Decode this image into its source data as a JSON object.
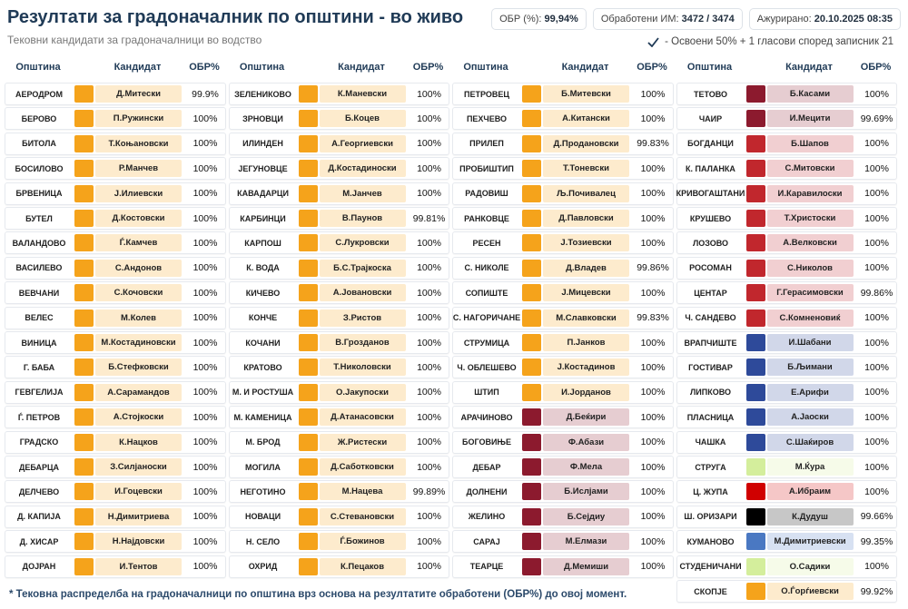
{
  "header": {
    "title": "Резултати за градоначалник по општини - во живо",
    "subtitle": "Тековни кандидати за градоначалници во водство",
    "badges": [
      {
        "label": "ОБР (%):",
        "value": "99,94%"
      },
      {
        "label": "Обработени ИМ:",
        "value": "3472 / 3474"
      },
      {
        "label": "Ажурирано:",
        "value": "20.10.2025 08:35"
      }
    ],
    "note": "- Освоени 50% + 1 гласови според записник 21"
  },
  "table": {
    "headers": [
      "Општина",
      "Кандидат",
      "ОБР%"
    ],
    "columns": [
      {
        "rows": [
          {
            "municipality": "АЕРОДРОМ",
            "candidate": "Д.Митески",
            "obr": "99.9%",
            "color": "#f5a31b"
          },
          {
            "municipality": "БЕРОВО",
            "candidate": "П.Ружински",
            "obr": "100%",
            "color": "#f5a31b"
          },
          {
            "municipality": "БИТОЛА",
            "candidate": "Т.Коњановски",
            "obr": "100%",
            "color": "#f5a31b"
          },
          {
            "municipality": "БОСИЛОВО",
            "candidate": "Р.Манчев",
            "obr": "100%",
            "color": "#f5a31b"
          },
          {
            "municipality": "БРВЕНИЦА",
            "candidate": "Ј.Илиевски",
            "obr": "100%",
            "color": "#f5a31b"
          },
          {
            "municipality": "БУТЕЛ",
            "candidate": "Д.Костовски",
            "obr": "100%",
            "color": "#f5a31b"
          },
          {
            "municipality": "ВАЛАНДОВО",
            "candidate": "Ѓ.Камчев",
            "obr": "100%",
            "color": "#f5a31b"
          },
          {
            "municipality": "ВАСИЛЕВО",
            "candidate": "С.Андонов",
            "obr": "100%",
            "color": "#f5a31b"
          },
          {
            "municipality": "ВЕВЧАНИ",
            "candidate": "С.Кочовски",
            "obr": "100%",
            "color": "#f5a31b"
          },
          {
            "municipality": "ВЕЛЕС",
            "candidate": "М.Колев",
            "obr": "100%",
            "color": "#f5a31b"
          },
          {
            "municipality": "ВИНИЦА",
            "candidate": "М.Костадиновски",
            "obr": "100%",
            "color": "#f5a31b"
          },
          {
            "municipality": "Г. БАБА",
            "candidate": "Б.Стефковски",
            "obr": "100%",
            "color": "#f5a31b"
          },
          {
            "municipality": "ГЕВГЕЛИЈА",
            "candidate": "А.Сарамандов",
            "obr": "100%",
            "color": "#f5a31b"
          },
          {
            "municipality": "Ѓ. ПЕТРОВ",
            "candidate": "А.Стојкоски",
            "obr": "100%",
            "color": "#f5a31b"
          },
          {
            "municipality": "ГРАДСКО",
            "candidate": "К.Нацков",
            "obr": "100%",
            "color": "#f5a31b"
          },
          {
            "municipality": "ДЕБАРЦА",
            "candidate": "З.Силјаноски",
            "obr": "100%",
            "color": "#f5a31b"
          },
          {
            "municipality": "ДЕЛЧЕВО",
            "candidate": "И.Гоцевски",
            "obr": "100%",
            "color": "#f5a31b"
          },
          {
            "municipality": "Д. КАПИЈА",
            "candidate": "Н.Димитриева",
            "obr": "100%",
            "color": "#f5a31b"
          },
          {
            "municipality": "Д. ХИСАР",
            "candidate": "Н.Најдовски",
            "obr": "100%",
            "color": "#f5a31b"
          },
          {
            "municipality": "ДОЈРАН",
            "candidate": "И.Тентов",
            "obr": "100%",
            "color": "#f5a31b"
          }
        ]
      },
      {
        "rows": [
          {
            "municipality": "ЗЕЛЕНИКОВО",
            "candidate": "К.Маневски",
            "obr": "100%",
            "color": "#f5a31b"
          },
          {
            "municipality": "ЗРНОВЦИ",
            "candidate": "Б.Коцев",
            "obr": "100%",
            "color": "#f5a31b"
          },
          {
            "municipality": "ИЛИНДЕН",
            "candidate": "А.Георгиевски",
            "obr": "100%",
            "color": "#f5a31b"
          },
          {
            "municipality": "ЈЕГУНОВЦЕ",
            "candidate": "Д.Костадиноски",
            "obr": "100%",
            "color": "#f5a31b"
          },
          {
            "municipality": "КАВАДАРЦИ",
            "candidate": "М.Јанчев",
            "obr": "100%",
            "color": "#f5a31b"
          },
          {
            "municipality": "КАРБИНЦИ",
            "candidate": "В.Паунов",
            "obr": "99.81%",
            "color": "#f5a31b"
          },
          {
            "municipality": "КАРПОШ",
            "candidate": "С.Лукровски",
            "obr": "100%",
            "color": "#f5a31b"
          },
          {
            "municipality": "К. ВОДА",
            "candidate": "Б.С.Трајкоска",
            "obr": "100%",
            "color": "#f5a31b"
          },
          {
            "municipality": "КИЧЕВО",
            "candidate": "А.Јовановски",
            "obr": "100%",
            "color": "#f5a31b"
          },
          {
            "municipality": "КОНЧЕ",
            "candidate": "З.Ристов",
            "obr": "100%",
            "color": "#f5a31b"
          },
          {
            "municipality": "КОЧАНИ",
            "candidate": "В.Грозданов",
            "obr": "100%",
            "color": "#f5a31b"
          },
          {
            "municipality": "КРАТОВО",
            "candidate": "Т.Николовски",
            "obr": "100%",
            "color": "#f5a31b"
          },
          {
            "municipality": "М. И РОСТУША",
            "candidate": "О.Јакупоски",
            "obr": "100%",
            "color": "#f5a31b"
          },
          {
            "municipality": "М. КАМЕНИЦА",
            "candidate": "Д.Атанасовски",
            "obr": "100%",
            "color": "#f5a31b"
          },
          {
            "municipality": "М. БРОД",
            "candidate": "Ж.Ристески",
            "obr": "100%",
            "color": "#f5a31b"
          },
          {
            "municipality": "МОГИЛА",
            "candidate": "Д.Саботковски",
            "obr": "100%",
            "color": "#f5a31b"
          },
          {
            "municipality": "НЕГОТИНО",
            "candidate": "М.Нацева",
            "obr": "99.89%",
            "color": "#f5a31b"
          },
          {
            "municipality": "НОВАЦИ",
            "candidate": "С.Стевановски",
            "obr": "100%",
            "color": "#f5a31b"
          },
          {
            "municipality": "Н. СЕЛО",
            "candidate": "Ѓ.Божинов",
            "obr": "100%",
            "color": "#f5a31b"
          },
          {
            "municipality": "ОХРИД",
            "candidate": "К.Пецаков",
            "obr": "100%",
            "color": "#f5a31b"
          }
        ]
      },
      {
        "rows": [
          {
            "municipality": "ПЕТРОВЕЦ",
            "candidate": "Б.Митевски",
            "obr": "100%",
            "color": "#f5a31b"
          },
          {
            "municipality": "ПЕХЧЕВО",
            "candidate": "А.Китански",
            "obr": "100%",
            "color": "#f5a31b"
          },
          {
            "municipality": "ПРИЛЕП",
            "candidate": "Д.Продановски",
            "obr": "99.83%",
            "color": "#f5a31b"
          },
          {
            "municipality": "ПРОБИШТИП",
            "candidate": "Т.Тоневски",
            "obr": "100%",
            "color": "#f5a31b"
          },
          {
            "municipality": "РАДОВИШ",
            "candidate": "Љ.Почивалец",
            "obr": "100%",
            "color": "#f5a31b"
          },
          {
            "municipality": "РАНКОВЦЕ",
            "candidate": "Д.Павловски",
            "obr": "100%",
            "color": "#f5a31b"
          },
          {
            "municipality": "РЕСЕН",
            "candidate": "Ј.Тозиевски",
            "obr": "100%",
            "color": "#f5a31b"
          },
          {
            "municipality": "С. НИКОЛЕ",
            "candidate": "Д.Владев",
            "obr": "99.86%",
            "color": "#f5a31b"
          },
          {
            "municipality": "СОПИШТЕ",
            "candidate": "Ј.Мицевски",
            "obr": "100%",
            "color": "#f5a31b"
          },
          {
            "municipality": "С. НАГОРИЧАНЕ",
            "candidate": "М.Славковски",
            "obr": "99.83%",
            "color": "#f5a31b"
          },
          {
            "municipality": "СТРУМИЦА",
            "candidate": "П.Јанков",
            "obr": "100%",
            "color": "#f5a31b"
          },
          {
            "municipality": "Ч. ОБЛЕШЕВО",
            "candidate": "Ј.Костадинов",
            "obr": "100%",
            "color": "#f5a31b"
          },
          {
            "municipality": "ШТИП",
            "candidate": "И.Јорданов",
            "obr": "100%",
            "color": "#f5a31b"
          },
          {
            "municipality": "АРАЧИНОВО",
            "candidate": "Д.Беќири",
            "obr": "100%",
            "color": "#8c1a2e"
          },
          {
            "municipality": "БОГОВИЊЕ",
            "candidate": "Ф.Абази",
            "obr": "100%",
            "color": "#8c1a2e"
          },
          {
            "municipality": "ДЕБАР",
            "candidate": "Ф.Мела",
            "obr": "100%",
            "color": "#8c1a2e"
          },
          {
            "municipality": "ДОЛНЕНИ",
            "candidate": "Б.Ислјами",
            "obr": "100%",
            "color": "#8c1a2e"
          },
          {
            "municipality": "ЖЕЛИНО",
            "candidate": "Б.Сејдиу",
            "obr": "100%",
            "color": "#8c1a2e"
          },
          {
            "municipality": "САРАЈ",
            "candidate": "М.Елмази",
            "obr": "100%",
            "color": "#8c1a2e"
          },
          {
            "municipality": "ТЕАРЦЕ",
            "candidate": "Д.Мемиши",
            "obr": "100%",
            "color": "#8c1a2e"
          }
        ]
      },
      {
        "rows": [
          {
            "municipality": "ТЕТОВО",
            "candidate": "Б.Касами",
            "obr": "100%",
            "color": "#8c1a2e"
          },
          {
            "municipality": "ЧАИР",
            "candidate": "И.Мецити",
            "obr": "99.69%",
            "color": "#8c1a2e"
          },
          {
            "municipality": "БОГДАНЦИ",
            "candidate": "Б.Шапов",
            "obr": "100%",
            "color": "#c1272d"
          },
          {
            "municipality": "К. ПАЛАНКА",
            "candidate": "С.Митовски",
            "obr": "100%",
            "color": "#c1272d"
          },
          {
            "municipality": "КРИВОГАШТАНИ",
            "candidate": "И.Каравилоски",
            "obr": "100%",
            "color": "#c1272d"
          },
          {
            "municipality": "КРУШЕВО",
            "candidate": "Т.Христоски",
            "obr": "100%",
            "color": "#c1272d"
          },
          {
            "municipality": "ЛОЗОВО",
            "candidate": "А.Велковски",
            "obr": "100%",
            "color": "#c1272d"
          },
          {
            "municipality": "РОСОМАН",
            "candidate": "С.Николов",
            "obr": "100%",
            "color": "#c1272d"
          },
          {
            "municipality": "ЦЕНТАР",
            "candidate": "Г.Герасимовски",
            "obr": "99.86%",
            "color": "#c1272d"
          },
          {
            "municipality": "Ч. САНДЕВО",
            "candidate": "С.Комненовиќ",
            "obr": "100%",
            "color": "#c1272d"
          },
          {
            "municipality": "ВРАПЧИШТЕ",
            "candidate": "И.Шабани",
            "obr": "100%",
            "color": "#2e4a9a"
          },
          {
            "municipality": "ГОСТИВАР",
            "candidate": "Б.Љимани",
            "obr": "100%",
            "color": "#2e4a9a"
          },
          {
            "municipality": "ЛИПКОВО",
            "candidate": "Е.Арифи",
            "obr": "100%",
            "color": "#2e4a9a"
          },
          {
            "municipality": "ПЛАСНИЦА",
            "candidate": "А.Јаоски",
            "obr": "100%",
            "color": "#2e4a9a"
          },
          {
            "municipality": "ЧАШКА",
            "candidate": "С.Шаќиров",
            "obr": "100%",
            "color": "#2e4a9a"
          },
          {
            "municipality": "СТРУГА",
            "candidate": "М.Ќура",
            "obr": "100%",
            "color": "#d4ee9c"
          },
          {
            "municipality": "Ц. ЖУПА",
            "candidate": "А.Ибраим",
            "obr": "100%",
            "color": "#d00000"
          },
          {
            "municipality": "Ш. ОРИЗАРИ",
            "candidate": "К.Дудуш",
            "obr": "99.66%",
            "color": "#000000"
          },
          {
            "municipality": "КУМАНОВО",
            "candidate": "М.Димитриевски",
            "obr": "99.35%",
            "color": "#4a78c2"
          },
          {
            "municipality": "СТУДЕНИЧАНИ",
            "candidate": "О.Садики",
            "obr": "100%",
            "color": "#d4ee9c"
          },
          {
            "municipality": "СКОПЈЕ",
            "candidate": "О.Ѓорѓиевски",
            "obr": "99.92%",
            "color": "#f5a31b"
          }
        ]
      }
    ]
  },
  "footer": "* Тековна распределба на градоначалници по општина врз основа на резултатите обработени (ОБР%) до овој момент."
}
